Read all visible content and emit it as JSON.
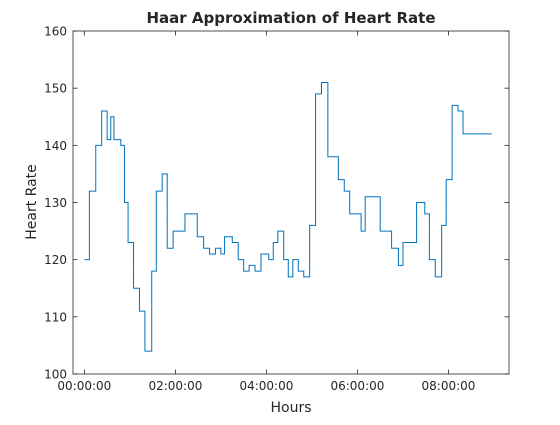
{
  "chart_data": {
    "type": "line",
    "style": "stairs",
    "title": "Haar Approximation of Heart Rate",
    "xlabel": "Hours",
    "ylabel": "Heart Rate",
    "xlim": [
      -0.25,
      9.33
    ],
    "ylim": [
      100,
      160
    ],
    "xticks": [
      {
        "value": 0,
        "label": "00:00:00"
      },
      {
        "value": 2,
        "label": "02:00:00"
      },
      {
        "value": 4,
        "label": "04:00:00"
      },
      {
        "value": 6,
        "label": "06:00:00"
      },
      {
        "value": 8,
        "label": "08:00:00"
      }
    ],
    "yticks": [
      100,
      110,
      120,
      130,
      140,
      150,
      160
    ],
    "grid": false,
    "line_color": "#0072bd",
    "series": [
      {
        "x": [
          0.0,
          0.11,
          0.25,
          0.38,
          0.5,
          0.58,
          0.65,
          0.71,
          0.8,
          0.88,
          0.96,
          1.08,
          1.12,
          1.21,
          1.33,
          1.48,
          1.58,
          1.71,
          1.82,
          1.95,
          2.08,
          2.21,
          2.35,
          2.48,
          2.62,
          2.75,
          2.88,
          3.0,
          3.08,
          3.25,
          3.38,
          3.5,
          3.62,
          3.75,
          3.88,
          4.05,
          4.15,
          4.25,
          4.38,
          4.48,
          4.58,
          4.7,
          4.82,
          4.95,
          5.08,
          5.21,
          5.35,
          5.48,
          5.58,
          5.71,
          5.83,
          5.95,
          6.08,
          6.17,
          6.25,
          6.38,
          6.5,
          6.75,
          6.9,
          7.0,
          7.3,
          7.48,
          7.58,
          7.71,
          7.85,
          7.95,
          8.08,
          8.21,
          8.32,
          8.42,
          8.55,
          8.62,
          8.72,
          8.82,
          8.95
        ],
        "y": [
          120,
          132,
          140,
          146,
          141,
          145,
          141,
          141,
          140,
          130,
          123,
          115,
          115,
          111,
          104,
          118,
          132,
          135,
          122,
          125,
          125,
          128,
          128,
          124,
          122,
          121,
          122,
          121,
          124,
          123,
          120,
          118,
          119,
          118,
          121,
          120,
          123,
          125,
          120,
          117,
          120,
          118,
          117,
          126,
          149,
          151,
          138,
          138,
          134,
          132,
          128,
          128,
          125,
          131,
          131,
          131,
          125,
          122,
          119,
          123,
          130,
          128,
          120,
          117,
          126,
          134,
          147,
          146,
          142,
          142,
          142,
          142,
          142,
          142,
          142
        ]
      }
    ]
  }
}
